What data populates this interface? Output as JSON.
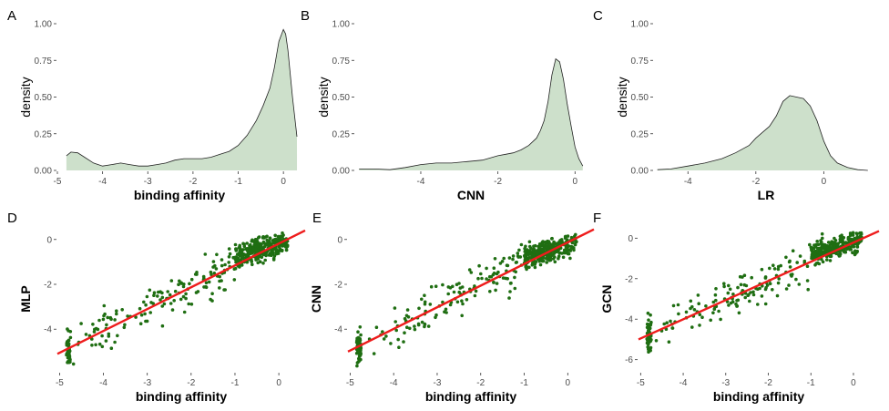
{
  "chart_data": [
    {
      "panel": "A",
      "type": "area",
      "xlabel": "binding affinity",
      "ylabel": "density",
      "xlim": [
        -5,
        0.4
      ],
      "ylim": [
        0,
        1.0
      ],
      "xticks": [
        "-5",
        "-4",
        "-3",
        "-2",
        "-1",
        "0"
      ],
      "yticks": [
        "0.00",
        "0.25",
        "0.50",
        "0.75",
        "1.00"
      ],
      "x": [
        -4.8,
        -4.7,
        -4.55,
        -4.4,
        -4.2,
        -4.0,
        -3.8,
        -3.6,
        -3.4,
        -3.2,
        -3.0,
        -2.8,
        -2.6,
        -2.4,
        -2.2,
        -2.0,
        -1.8,
        -1.6,
        -1.4,
        -1.2,
        -1.0,
        -0.8,
        -0.6,
        -0.45,
        -0.3,
        -0.2,
        -0.1,
        0.0,
        0.05,
        0.1,
        0.2,
        0.3
      ],
      "y": [
        0.1,
        0.125,
        0.12,
        0.09,
        0.05,
        0.03,
        0.04,
        0.05,
        0.04,
        0.03,
        0.03,
        0.04,
        0.05,
        0.07,
        0.08,
        0.08,
        0.08,
        0.09,
        0.11,
        0.13,
        0.17,
        0.24,
        0.34,
        0.44,
        0.56,
        0.7,
        0.88,
        0.96,
        0.93,
        0.82,
        0.5,
        0.23
      ],
      "fill": "#cde0cb"
    },
    {
      "panel": "B",
      "type": "area",
      "xlabel": "CNN",
      "ylabel": "density",
      "xlim": [
        -5.7,
        0.3
      ],
      "ylim": [
        0,
        1.0
      ],
      "xticks": [
        "-4",
        "-2",
        "0"
      ],
      "yticks": [
        "0.00",
        "0.25",
        "0.50",
        "0.75",
        "1.00"
      ],
      "x": [
        -5.6,
        -5.2,
        -4.8,
        -4.4,
        -4.0,
        -3.6,
        -3.2,
        -2.8,
        -2.4,
        -2.0,
        -1.8,
        -1.6,
        -1.4,
        -1.2,
        -1.0,
        -0.9,
        -0.8,
        -0.7,
        -0.6,
        -0.5,
        -0.4,
        -0.3,
        -0.2,
        -0.1,
        0.0,
        0.1,
        0.2
      ],
      "y": [
        0.01,
        0.01,
        0.005,
        0.02,
        0.04,
        0.05,
        0.05,
        0.06,
        0.07,
        0.1,
        0.11,
        0.12,
        0.14,
        0.17,
        0.22,
        0.27,
        0.34,
        0.47,
        0.65,
        0.76,
        0.74,
        0.62,
        0.45,
        0.3,
        0.16,
        0.08,
        0.03
      ],
      "fill": "#cde0cb"
    },
    {
      "panel": "C",
      "type": "area",
      "xlabel": "LR",
      "ylabel": "density",
      "xlim": [
        -5,
        1.6
      ],
      "ylim": [
        0,
        1.0
      ],
      "xticks": [
        "-4",
        "-2",
        "0"
      ],
      "yticks": [
        "0.00",
        "0.25",
        "0.50",
        "0.75",
        "1.00"
      ],
      "x": [
        -4.9,
        -4.5,
        -4.0,
        -3.5,
        -3.0,
        -2.6,
        -2.2,
        -2.0,
        -1.8,
        -1.6,
        -1.4,
        -1.2,
        -1.0,
        -0.8,
        -0.6,
        -0.4,
        -0.2,
        0.0,
        0.2,
        0.4,
        0.7,
        1.0,
        1.3
      ],
      "y": [
        0.005,
        0.01,
        0.03,
        0.05,
        0.08,
        0.12,
        0.17,
        0.22,
        0.26,
        0.3,
        0.37,
        0.47,
        0.51,
        0.5,
        0.49,
        0.44,
        0.34,
        0.2,
        0.1,
        0.05,
        0.02,
        0.005,
        0.0
      ],
      "fill": "#cde0cb"
    },
    {
      "panel": "D",
      "type": "scatter",
      "xlabel": "binding affinity",
      "ylabel": "MLP",
      "xlim": [
        -5.05,
        0.6
      ],
      "ylim": [
        -5.9,
        0.6
      ],
      "xticks": [
        "-5",
        "-4",
        "-3",
        "-2",
        "-1",
        "0"
      ],
      "yticks": [
        "-4",
        "-2",
        "0"
      ],
      "fit": {
        "x": [
          -5.05,
          0.6
        ],
        "y": [
          -5.1,
          0.4
        ]
      },
      "point_color": "#1f6e12",
      "line_color": "#ee1c1c"
    },
    {
      "panel": "E",
      "type": "scatter",
      "xlabel": "binding affinity",
      "ylabel": "CNN",
      "xlim": [
        -5.05,
        0.6
      ],
      "ylim": [
        -5.9,
        0.6
      ],
      "xticks": [
        "-5",
        "-4",
        "-3",
        "-2",
        "-1",
        "0"
      ],
      "yticks": [
        "-4",
        "-2",
        "0"
      ],
      "fit": {
        "x": [
          -5.05,
          0.6
        ],
        "y": [
          -5.0,
          0.45
        ]
      },
      "point_color": "#1f6e12",
      "line_color": "#ee1c1c"
    },
    {
      "panel": "F",
      "type": "scatter",
      "xlabel": "binding affinity",
      "ylabel": "GCN",
      "xlim": [
        -5.05,
        0.6
      ],
      "ylim": [
        -6.6,
        0.6
      ],
      "xticks": [
        "-5",
        "-4",
        "-3",
        "-2",
        "-1",
        "0"
      ],
      "yticks": [
        "-6",
        "-4",
        "-2",
        "0"
      ],
      "fit": {
        "x": [
          -5.05,
          0.6
        ],
        "y": [
          -5.0,
          0.35
        ]
      },
      "point_color": "#1f6e12",
      "line_color": "#ee1c1c"
    }
  ]
}
